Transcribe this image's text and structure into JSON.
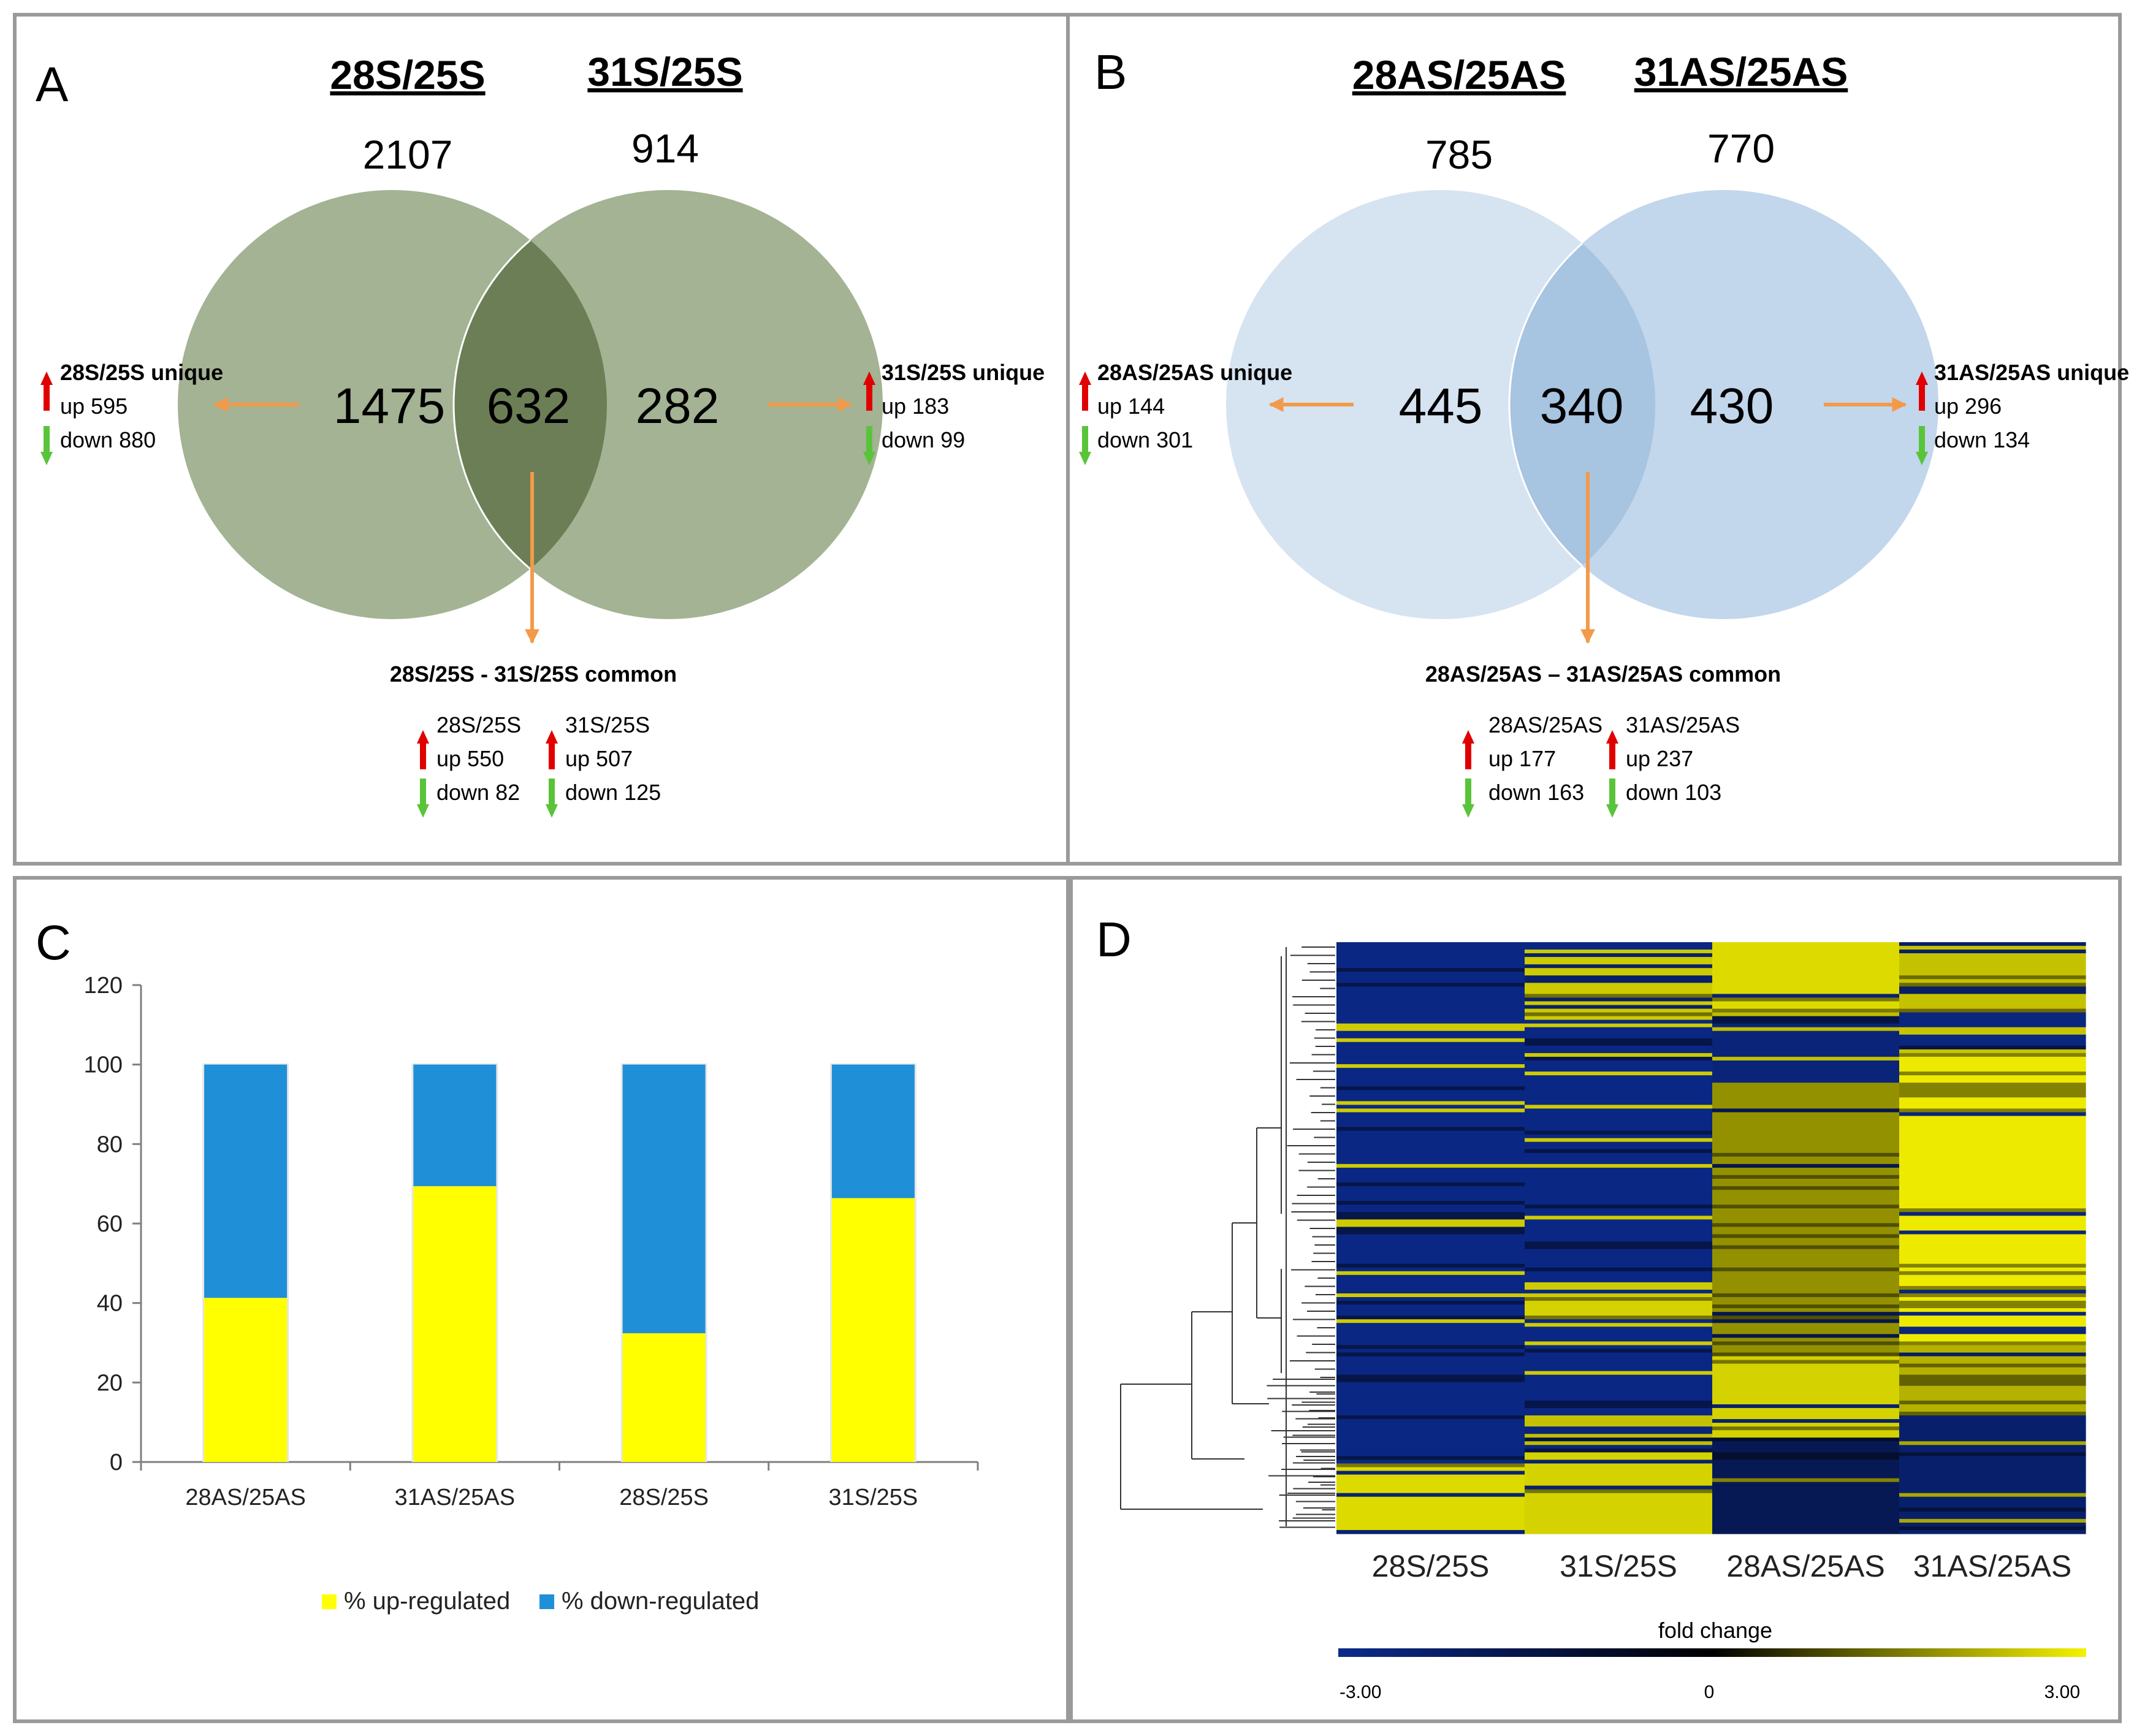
{
  "panelA": {
    "letter": "A",
    "left_title": "28S/25S",
    "right_title": "31S/25S",
    "left_total": "2107",
    "right_total": "914",
    "left_only": "1475",
    "overlap": "632",
    "right_only": "282",
    "left_unique": {
      "title": "28S/25S unique",
      "up": "up 595",
      "down": "down 880"
    },
    "right_unique": {
      "title": "31S/25S unique",
      "up": "up 183",
      "down": "down 99"
    },
    "common": {
      "title": "28S/25S - 31S/25S common",
      "a": {
        "label": "28S/25S",
        "up": "up 550",
        "down": "down 82"
      },
      "b": {
        "label": "31S/25S",
        "up": "up 507",
        "down": "down 125"
      }
    },
    "colors": {
      "left": "#8fa07a",
      "right": "#8fa07a",
      "overlap": "#6a7d51"
    }
  },
  "panelB": {
    "letter": "B",
    "left_title": "28AS/25AS",
    "right_title": "31AS/25AS",
    "left_total": "785",
    "right_total": "770",
    "left_only": "445",
    "overlap": "340",
    "right_only": "430",
    "left_unique": {
      "title": "28AS/25AS unique",
      "up": "up 144",
      "down": "down 301"
    },
    "right_unique": {
      "title": "31AS/25AS unique",
      "up": "up 296",
      "down": "down 134"
    },
    "common": {
      "title": "28AS/25AS – 31AS/25AS common",
      "a": {
        "label": "28AS/25AS",
        "up": "up 177",
        "down": "down 163"
      },
      "b": {
        "label": "31AS/25AS",
        "up": "up 237",
        "down": "down 103"
      }
    },
    "colors": {
      "left": "#d7e4f1",
      "right": "#c3d7eb",
      "overlap": "#a8c5e0"
    }
  },
  "panelC": {
    "letter": "C"
  },
  "panelD": {
    "letter": "D",
    "colorbar_title": "fold change",
    "colorbar_min": "-3.00",
    "colorbar_mid": "0",
    "colorbar_max": "3.00",
    "colors": {
      "low": "#0b2a8c",
      "mid": "#000000",
      "high": "#f5f200"
    }
  },
  "chart_data": [
    {
      "type": "bar",
      "stacked": true,
      "title": "",
      "categories": [
        "28AS/25AS",
        "31AS/25AS",
        "28S/25S",
        "31S/25S"
      ],
      "series": [
        {
          "name": "% up-regulated",
          "color": "#ffff00",
          "values": [
            41.3,
            69.4,
            32.4,
            66.4
          ]
        },
        {
          "name": "% down-regulated",
          "color": "#1f8fd8",
          "values": [
            58.7,
            30.6,
            67.6,
            33.6
          ]
        }
      ],
      "ylim": [
        0,
        120
      ],
      "yticks": [
        0,
        20,
        40,
        60,
        80,
        100,
        120
      ],
      "legend": "bottom",
      "xlabel": "",
      "ylabel": ""
    },
    {
      "type": "heatmap",
      "columns": [
        "28S/25S",
        "31S/25S",
        "28AS/25AS",
        "31AS/25AS"
      ],
      "value_range": [
        -3.0,
        3.0
      ],
      "colorbar_label": "fold change"
    }
  ]
}
